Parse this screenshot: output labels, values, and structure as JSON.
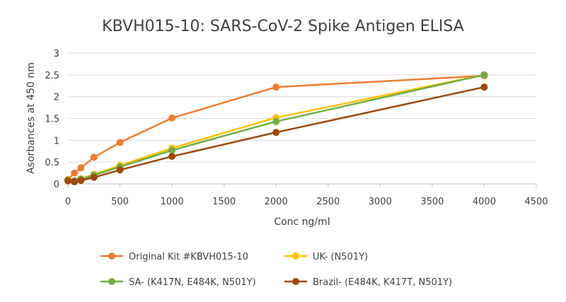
{
  "chart_data": {
    "type": "line",
    "title": "KBVH015-10: SARS-CoV-2 Spike Antigen ELISA",
    "xlabel": "Conc ng/ml",
    "ylabel": "Asorbances at 450 nm",
    "xlim": [
      0,
      4500
    ],
    "ylim": [
      0,
      3
    ],
    "x_ticks": [
      0,
      500,
      1000,
      1500,
      2000,
      2500,
      3000,
      3500,
      4000,
      4500
    ],
    "y_ticks": [
      0,
      0.5,
      1,
      1.5,
      2,
      2.5,
      3
    ],
    "y_tick_labels": [
      "0",
      "0.5",
      "1",
      "1.5",
      "2",
      "2.5",
      "3"
    ],
    "grid": true,
    "legend_position": "bottom",
    "x": [
      0,
      62.5,
      125,
      250,
      500,
      1000,
      2000,
      4000
    ],
    "series": [
      {
        "name": "Original Kit #KBVH015-10",
        "color": "#ED7D31",
        "values": [
          0.1,
          0.25,
          0.37,
          0.61,
          0.95,
          1.51,
          2.22,
          2.48
        ]
      },
      {
        "name": "UK- (N501Y)",
        "color": "#FFC000",
        "values": [
          0.09,
          0.07,
          0.12,
          0.22,
          0.42,
          0.82,
          1.52,
          2.5
        ]
      },
      {
        "name": "SA- (K417N, E484K, N501Y)",
        "color": "#70AD47",
        "values": [
          0.08,
          0.07,
          0.11,
          0.2,
          0.39,
          0.77,
          1.43,
          2.5
        ]
      },
      {
        "name": "Brazil- (E484K, K417T, N501Y)",
        "color": "#9E480E",
        "values": [
          0.07,
          0.05,
          0.08,
          0.15,
          0.32,
          0.63,
          1.18,
          2.22
        ]
      }
    ]
  }
}
